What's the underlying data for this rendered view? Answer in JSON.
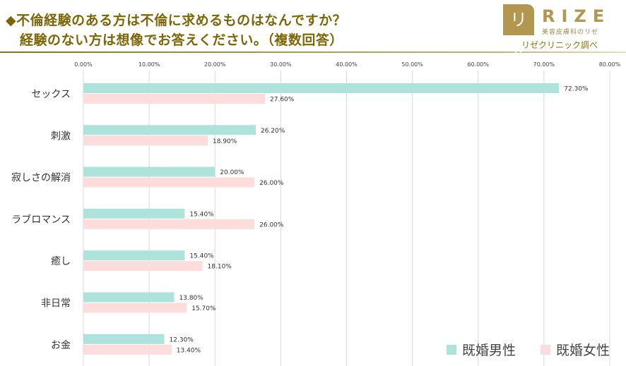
{
  "title_line1": "◆不倫経験のある方は不倫に求めるものはなんですか？",
  "title_line2": "経験のない方は想像でお答えください。（複数回答）",
  "logo": {
    "mark": "リゼ",
    "name": "RIZE",
    "sub": "美容皮膚科のリゼ"
  },
  "credit": "リゼクリニック調べ",
  "colors": {
    "male": "#aee3dc",
    "female": "#fddcdc",
    "title": "#7d6608"
  },
  "chart_data": {
    "type": "bar",
    "orientation": "horizontal",
    "categories": [
      "セックス",
      "刺激",
      "寂しさの解消",
      "ラブロマンス",
      "癒し",
      "非日常",
      "お金"
    ],
    "series": [
      {
        "name": "既婚男性",
        "values": [
          72.3,
          26.2,
          20.0,
          15.4,
          15.4,
          13.8,
          12.3
        ],
        "labels": [
          "72.30%",
          "26.20%",
          "20.00%",
          "15.40%",
          "15.40%",
          "13.80%",
          "12.30%"
        ]
      },
      {
        "name": "既婚女性",
        "values": [
          27.6,
          18.9,
          26.0,
          26.0,
          18.1,
          15.7,
          13.4
        ],
        "labels": [
          "27.60%",
          "18.90%",
          "26.00%",
          "26.00%",
          "18.10%",
          "15.70%",
          "13.40%"
        ]
      }
    ],
    "xlim": [
      0,
      80
    ],
    "xticks": [
      "0.00%",
      "10.00%",
      "20.00%",
      "30.00%",
      "40.00%",
      "50.00%",
      "60.00%",
      "70.00%",
      "80.00%"
    ],
    "grid": true,
    "legend": "bottom-right"
  }
}
